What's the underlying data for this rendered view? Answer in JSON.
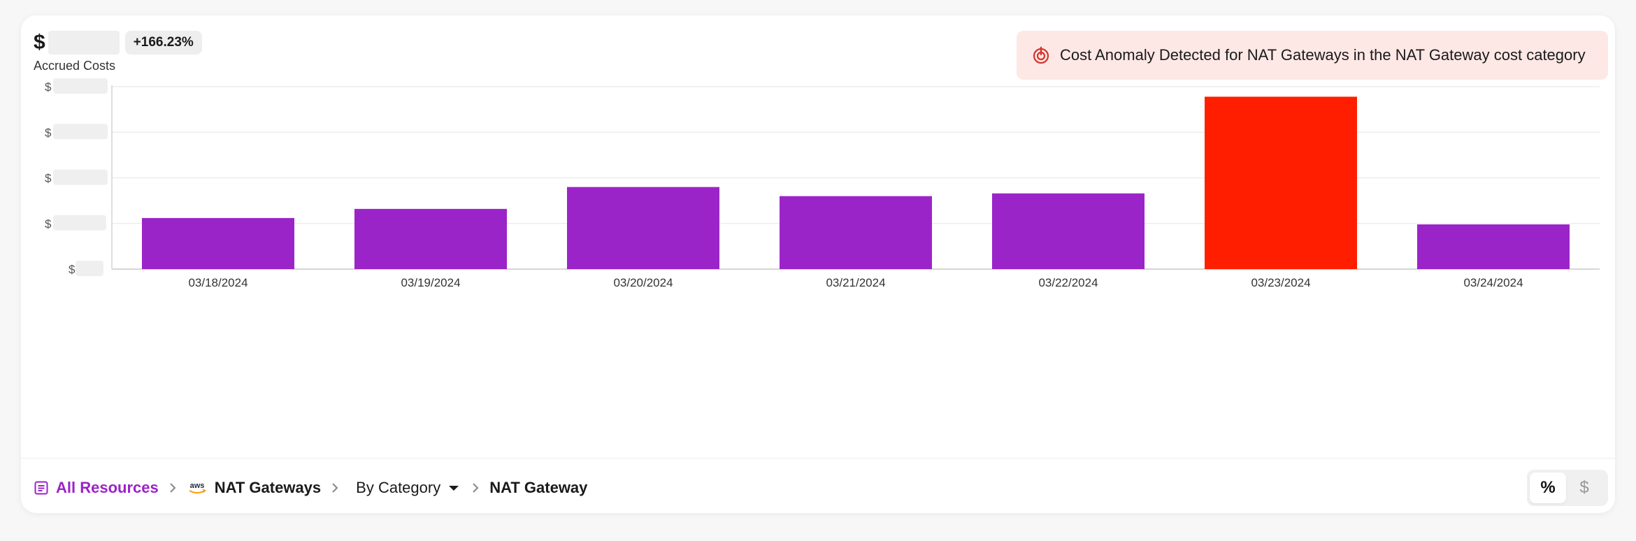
{
  "summary": {
    "currency_symbol": "$",
    "change_badge": "+166.23%",
    "subtitle": "Accrued Costs"
  },
  "anomaly": {
    "message": "Cost Anomaly Detected for NAT Gateways in the NAT Gateway cost category",
    "icon": "anomaly-target-icon"
  },
  "chart_data": {
    "type": "bar",
    "categories": [
      "03/18/2024",
      "03/19/2024",
      "03/20/2024",
      "03/21/2024",
      "03/22/2024",
      "03/23/2024",
      "03/24/2024"
    ],
    "values": [
      0.28,
      0.33,
      0.45,
      0.4,
      0.415,
      0.945,
      0.245
    ],
    "value_note": "values shown as fraction of top y gridline; y tick amounts are redacted",
    "ylim": [
      0,
      1
    ],
    "y_tick_prefix": "$",
    "y_tick_count": 5,
    "grid": true,
    "colors": {
      "normal": "#9b24c9",
      "anomaly": "#ff1f00"
    },
    "anomaly_index": 5
  },
  "footer": {
    "breadcrumbs": [
      {
        "label": "All Resources",
        "icon": "list-icon"
      },
      {
        "label": "NAT Gateways",
        "icon": "aws-logo-icon"
      },
      {
        "label": "By Category",
        "icon": "chevron-down-icon"
      },
      {
        "label": "NAT Gateway"
      }
    ],
    "toggle": {
      "percent_label": "%",
      "dollar_label": "$",
      "active": "percent"
    }
  }
}
